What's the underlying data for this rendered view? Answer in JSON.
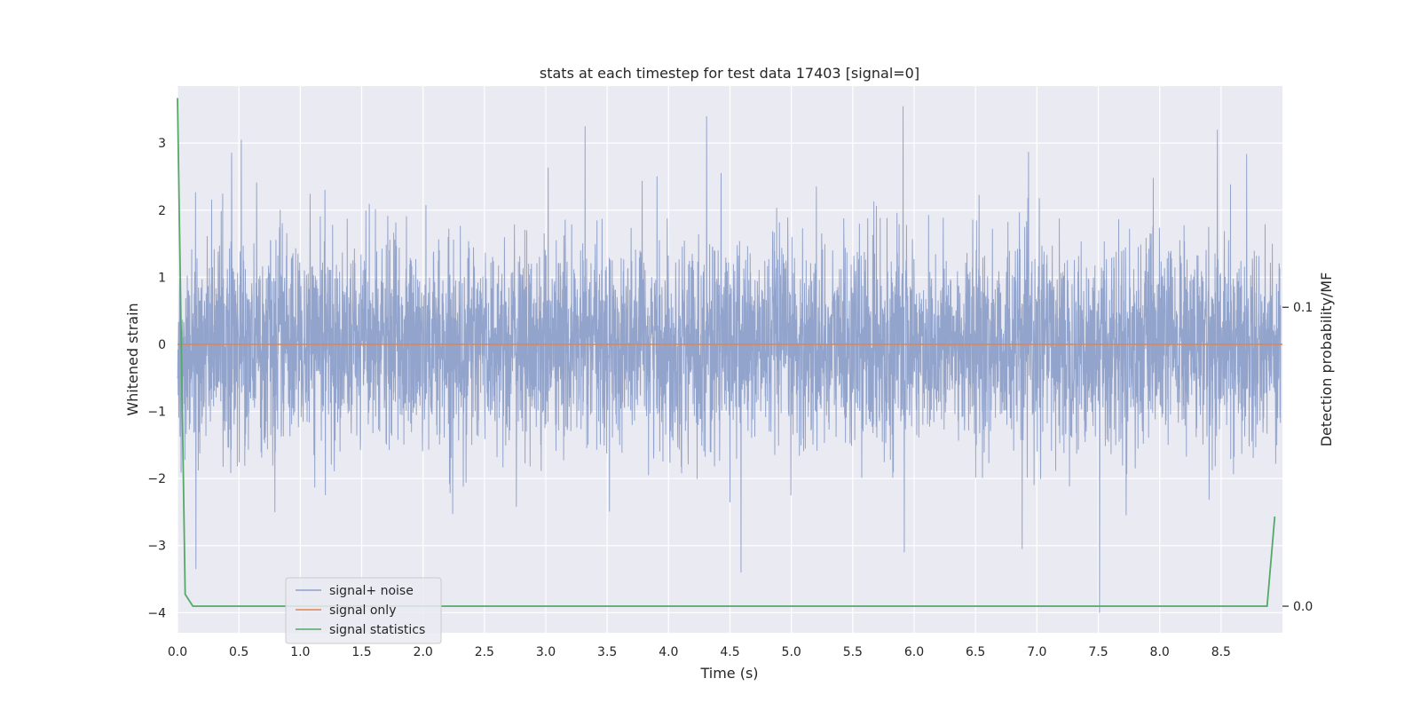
{
  "chart_data": {
    "type": "line",
    "title": "stats at each timestep for test data 17403 [signal=0]",
    "xlabel": "Time (s)",
    "ylabel": "Whitened strain",
    "y2label": "Detection probability/MF",
    "xlim": [
      0,
      9.0
    ],
    "ylim": [
      -4.3,
      3.85
    ],
    "y2lim": [
      -0.0089,
      0.174
    ],
    "xticks": [
      0.0,
      0.5,
      1.0,
      1.5,
      2.0,
      2.5,
      3.0,
      3.5,
      4.0,
      4.5,
      5.0,
      5.5,
      6.0,
      6.5,
      7.0,
      7.5,
      8.0,
      8.5
    ],
    "yticks": [
      -4,
      -3,
      -2,
      -1,
      0,
      1,
      2,
      3
    ],
    "y2ticks": [
      0.0,
      0.1
    ],
    "grid": true,
    "legend_position": "lower-left",
    "series": [
      {
        "name": "signal+ noise",
        "axis": "left",
        "color": "#8ea0c9",
        "description_range": [
          -4.0,
          3.5
        ],
        "noise_sigma": 0.75,
        "notable_points": [
          {
            "x": 0.52,
            "y": 3.05
          },
          {
            "x": 3.32,
            "y": 3.25
          },
          {
            "x": 4.31,
            "y": 3.4
          },
          {
            "x": 5.91,
            "y": 3.55
          },
          {
            "x": 8.47,
            "y": 3.2
          },
          {
            "x": 0.15,
            "y": -3.35
          },
          {
            "x": 4.59,
            "y": -3.4
          },
          {
            "x": 5.92,
            "y": -3.1
          },
          {
            "x": 7.51,
            "y": -4.0
          },
          {
            "x": 6.88,
            "y": -3.05
          }
        ]
      },
      {
        "name": "signal only",
        "axis": "left",
        "color": "#dd8452",
        "x": [
          0,
          9.0
        ],
        "y": [
          0,
          0
        ]
      },
      {
        "name": "signal statistics",
        "axis": "right",
        "color": "#55a868",
        "x": [
          0.0,
          0.0625,
          0.125,
          8.875,
          8.9375
        ],
        "y": [
          0.17,
          0.004,
          0.0,
          0.0,
          0.03
        ]
      }
    ]
  },
  "colors": {
    "plot_background": "#eaeaf2",
    "grid": "#ffffff"
  }
}
